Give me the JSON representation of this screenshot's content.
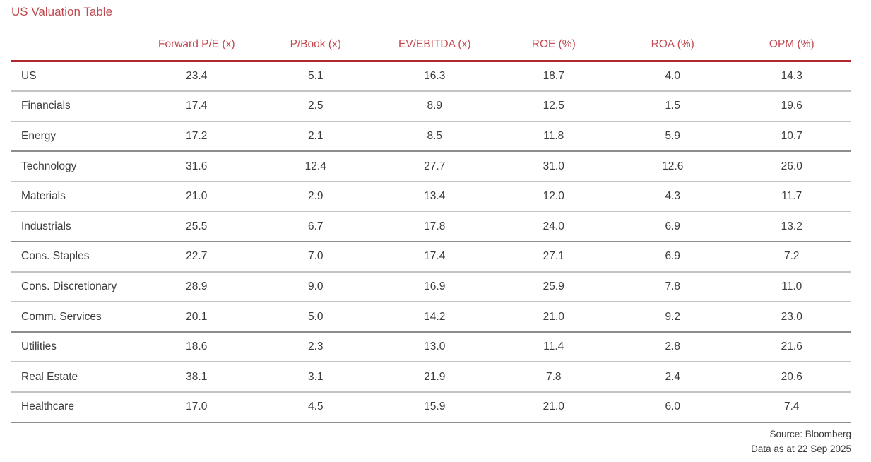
{
  "title": "US Valuation Table",
  "colors": {
    "accent_red_text": "#c1494f",
    "accent_red_rule": "#b0282e",
    "row_divider": "#c4c4c4",
    "group_divider": "#8d8d8d",
    "body_text": "#3c3c3c"
  },
  "chart_data": {
    "type": "table",
    "title": "US Valuation Table",
    "columns": [
      "Forward P/E (x)",
      "P/Book (x)",
      "EV/EBITDA (x)",
      "ROE (%)",
      "ROA (%)",
      "OPM (%)"
    ],
    "row_labels": [
      "US",
      "Financials",
      "Energy",
      "Technology",
      "Materials",
      "Industrials",
      "Cons. Staples",
      "Cons. Discretionary",
      "Comm. Services",
      "Utilities",
      "Real Estate",
      "Healthcare"
    ],
    "rows": [
      [
        23.4,
        5.1,
        16.3,
        18.7,
        4.0,
        14.3
      ],
      [
        17.4,
        2.5,
        8.9,
        12.5,
        1.5,
        19.6
      ],
      [
        17.2,
        2.1,
        8.5,
        11.8,
        5.9,
        10.7
      ],
      [
        31.6,
        12.4,
        27.7,
        31.0,
        12.6,
        26.0
      ],
      [
        21.0,
        2.9,
        13.4,
        12.0,
        4.3,
        11.7
      ],
      [
        25.5,
        6.7,
        17.8,
        24.0,
        6.9,
        13.2
      ],
      [
        22.7,
        7.0,
        17.4,
        27.1,
        6.9,
        7.2
      ],
      [
        28.9,
        9.0,
        16.9,
        25.9,
        7.8,
        11.0
      ],
      [
        20.1,
        5.0,
        14.2,
        21.0,
        9.2,
        23.0
      ],
      [
        18.6,
        2.3,
        13.0,
        11.4,
        2.8,
        21.6
      ],
      [
        38.1,
        3.1,
        21.9,
        7.8,
        2.4,
        20.6
      ],
      [
        17.0,
        4.5,
        15.9,
        21.0,
        6.0,
        7.4
      ]
    ],
    "value_decimals": 1,
    "group_separators_after": [
      "Energy",
      "Industrials",
      "Comm. Services",
      "Healthcare"
    ],
    "layout": {
      "grid": "horizontal row dividers only",
      "header_rule": "thick red",
      "numeric_alignment": "center"
    }
  },
  "footer": {
    "source": "Source: Bloomberg",
    "as_at": "Data as at 22 Sep 2025"
  }
}
